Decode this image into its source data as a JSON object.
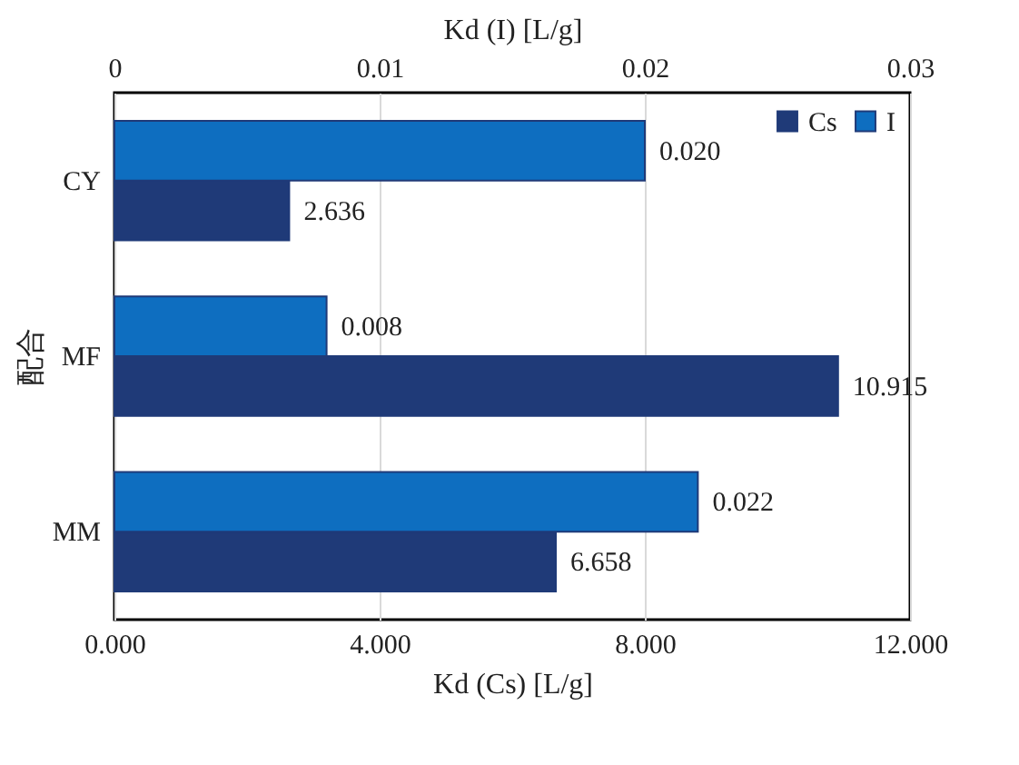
{
  "chart_data": {
    "type": "bar",
    "orientation": "horizontal",
    "categories": [
      "CY",
      "MF",
      "MM"
    ],
    "series": [
      {
        "name": "Cs",
        "color": "#1f3a78",
        "values": [
          2.636,
          10.915,
          6.658
        ],
        "value_labels": [
          "2.636",
          "10.915",
          "6.658"
        ]
      },
      {
        "name": "I",
        "color": "#0e6ec0",
        "axis": "x2",
        "values": [
          0.02,
          0.008,
          0.022
        ],
        "value_labels": [
          "0.020",
          "0.008",
          "0.022"
        ]
      }
    ],
    "xlabel": "Kd (Cs) [L/g]",
    "x2label": "Kd (I) [L/g]",
    "ylabel": "配合",
    "xlim": [
      0,
      12
    ],
    "xticks": [
      {
        "value": 0,
        "label": "0.000"
      },
      {
        "value": 4,
        "label": "4.000"
      },
      {
        "value": 8,
        "label": "8.000"
      },
      {
        "value": 12,
        "label": "12.000"
      }
    ],
    "x2lim": [
      0,
      0.03
    ],
    "x2ticks": [
      0,
      0.01,
      0.02,
      0.03
    ],
    "grid": "x",
    "legend": "top right"
  }
}
